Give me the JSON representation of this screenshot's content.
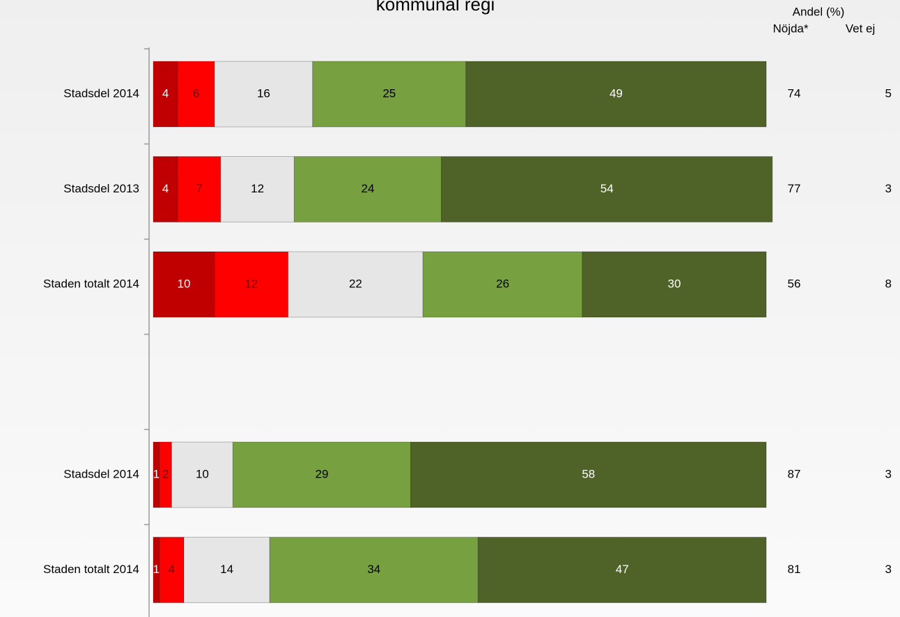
{
  "chart_data": {
    "type": "stacked-barh",
    "title": "kommunal regi",
    "categories": [
      "Stadsdel 2014",
      "Stadsdel 2013",
      "Staden totalt 2014",
      null,
      "Stadsdel 2014",
      "Staden totalt 2014"
    ],
    "series": [
      {
        "color": "#c00000",
        "label_color": "#ffffff",
        "values": [
          4,
          4,
          10,
          null,
          1,
          1
        ]
      },
      {
        "color": "#ff0000",
        "label_color": "#7a0000",
        "values": [
          6,
          7,
          12,
          null,
          2,
          4
        ]
      },
      {
        "color": "#e6e6e6",
        "label_color": "#000000",
        "values": [
          16,
          12,
          22,
          null,
          10,
          14
        ]
      },
      {
        "color": "#77a040",
        "label_color": "#000000",
        "values": [
          25,
          24,
          26,
          null,
          29,
          34
        ]
      },
      {
        "color": "#4f6228",
        "label_color": "#ffffff",
        "values": [
          49,
          54,
          30,
          null,
          58,
          47
        ]
      }
    ],
    "xlim": [
      0,
      100
    ],
    "side_header": "Andel (%)",
    "side_columns": [
      {
        "name": "Nöjda*",
        "values": [
          74,
          77,
          56,
          null,
          87,
          81
        ]
      },
      {
        "name": "Vet ej",
        "values": [
          5,
          3,
          8,
          null,
          3,
          3
        ]
      }
    ]
  }
}
